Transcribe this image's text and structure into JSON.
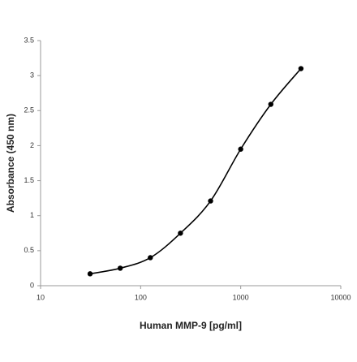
{
  "chart_data": {
    "type": "line",
    "x_label": "Human MMP-9 [pg/ml]",
    "y_label": "Absorbance (450 nm)",
    "x": [
      31.25,
      62.5,
      125,
      250,
      500,
      1000,
      2000,
      4000
    ],
    "series": [
      {
        "color": "#000000",
        "values": [
          0.17,
          0.25,
          0.4,
          0.75,
          1.21,
          1.95,
          2.59,
          3.1
        ]
      }
    ],
    "x_log": true,
    "xlim": [
      10,
      10000
    ],
    "xticks": [
      10,
      100,
      1000,
      10000
    ],
    "ylim": [
      0,
      3.5
    ],
    "yticks": [
      0,
      0.5,
      1,
      1.5,
      2,
      2.5,
      3,
      3.5
    ],
    "grid": false
  }
}
